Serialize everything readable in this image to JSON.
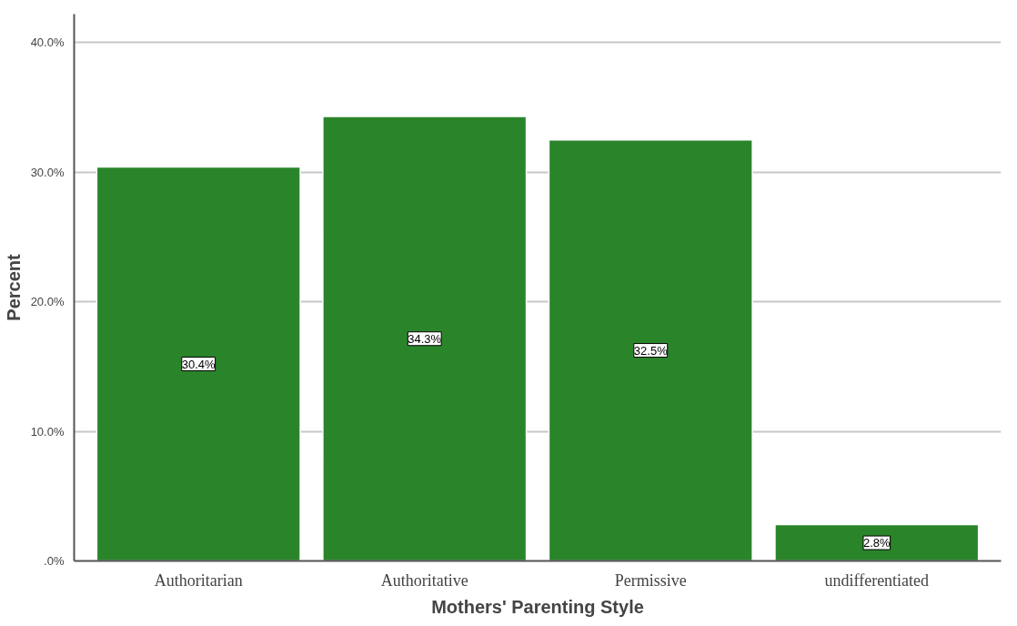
{
  "chart_data": {
    "type": "bar",
    "xlabel": "Mothers' Parenting Style",
    "ylabel": "Percent",
    "categories": [
      "Authoritarian",
      "Authoritative",
      "Permissive",
      "undifferentiated"
    ],
    "values": [
      30.4,
      34.3,
      32.5,
      2.8
    ],
    "value_labels": [
      "30.4%",
      "34.3%",
      "32.5%",
      "2.8%"
    ],
    "color": "#2a852a",
    "ylim": [
      0,
      42.2
    ],
    "yticks": [
      {
        "value": 0,
        "label": ".0%"
      },
      {
        "value": 10,
        "label": "10.0%"
      },
      {
        "value": 20,
        "label": "20.0%"
      },
      {
        "value": 30,
        "label": "30.0%"
      },
      {
        "value": 40,
        "label": "40.0%"
      }
    ],
    "grid": "y"
  }
}
